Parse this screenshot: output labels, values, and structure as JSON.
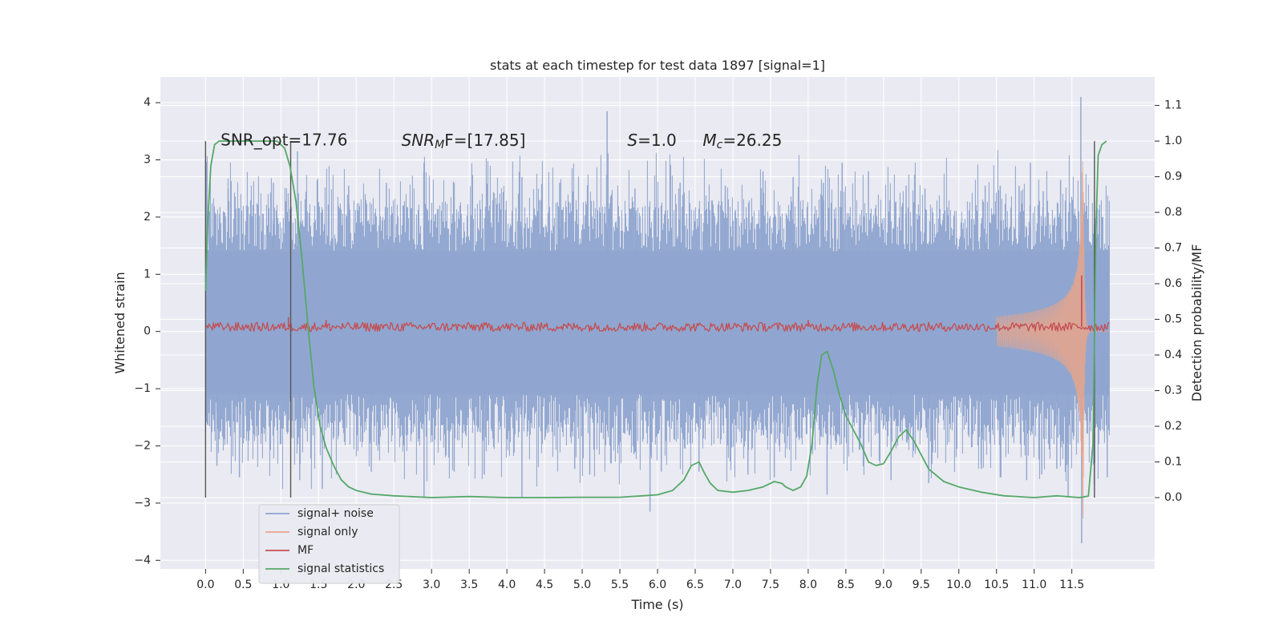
{
  "chart_data": {
    "type": "line",
    "title": "stats at each timestep for test data 1897 [signal=1]",
    "xlabel": "Time (s)",
    "ylabel_left": "Whitened strain",
    "ylabel_right": "Detection probability/MF",
    "xlim": [
      -0.6,
      12.6
    ],
    "ylim_left": [
      -4.15,
      4.45
    ],
    "ylim_right": [
      -0.2,
      1.18
    ],
    "x_ticks": [
      0.0,
      0.5,
      1.0,
      1.5,
      2.0,
      2.5,
      3.0,
      3.5,
      4.0,
      4.5,
      5.0,
      5.5,
      6.0,
      6.5,
      7.0,
      7.5,
      8.0,
      8.5,
      9.0,
      9.5,
      10.0,
      10.5,
      11.0,
      11.5
    ],
    "x_tick_labels": [
      "0.0",
      "0.5",
      "1.0",
      "1.5",
      "2.0",
      "2.5",
      "3.0",
      "3.5",
      "4.0",
      "4.5",
      "5.0",
      "5.5",
      "6.0",
      "6.5",
      "7.0",
      "7.5",
      "8.0",
      "8.5",
      "9.0",
      "9.5",
      "10.0",
      "10.5",
      "11.0",
      "11.5"
    ],
    "y_left_ticks": [
      -4,
      -3,
      -2,
      -1,
      0,
      1,
      2,
      3,
      4
    ],
    "y_left_tick_labels": [
      "−4",
      "−3",
      "−2",
      "−1",
      "0",
      "1",
      "2",
      "3",
      "4"
    ],
    "y_right_ticks": [
      0.0,
      0.1,
      0.2,
      0.3,
      0.4,
      0.5,
      0.6,
      0.7,
      0.8,
      0.9,
      1.0,
      1.1
    ],
    "y_right_tick_labels": [
      "0.0",
      "0.1",
      "0.2",
      "0.3",
      "0.4",
      "0.5",
      "0.6",
      "0.7",
      "0.8",
      "0.9",
      "1.0",
      "1.1"
    ],
    "grid": true,
    "legend_position": "lower-left",
    "colors": {
      "background": "#eaeaf2",
      "grid": "#ffffff",
      "noise": "#8fa5cf",
      "signal": "#e8a48b",
      "mf": "#c44e52",
      "stats": "#55a868",
      "vline": "#555555"
    },
    "annotations": [
      {
        "text": "SNR_opt=17.76",
        "x": 0.2,
        "y_right": 1.0
      },
      {
        "text": "SNR_MF=[17.85]",
        "x": 2.6,
        "y_right": 1.0,
        "italic_base": "SNR",
        "sub": "M",
        "tail": "F=[17.85]"
      },
      {
        "text": "S=1.0",
        "x": 5.6,
        "y_right": 1.0,
        "italic_base": "S",
        "tail": "=1.0"
      },
      {
        "text": "M_c=26.25",
        "x": 6.6,
        "y_right": 1.0,
        "italic_base": "M",
        "sub": "c",
        "tail": "=26.25"
      }
    ],
    "vlines": [
      {
        "x": 0.0,
        "y_right": [
          0.0,
          1.0
        ]
      },
      {
        "x": 1.13,
        "y_right": [
          0.0,
          1.0
        ]
      },
      {
        "x": 11.8,
        "y_right": [
          0.0,
          1.0
        ]
      }
    ],
    "series": [
      {
        "name": "signal+ noise",
        "axis": "left",
        "t_start": 0.0,
        "t_end": 12.0,
        "core_min": -1.1,
        "core_max": 1.4,
        "spikes": [
          [
            0.12,
            2.05
          ],
          [
            0.3,
            2.5
          ],
          [
            0.9,
            2.6
          ],
          [
            1.22,
            3.15
          ],
          [
            1.9,
            2.55
          ],
          [
            2.4,
            2.6
          ],
          [
            2.9,
            2.95
          ],
          [
            3.3,
            2.6
          ],
          [
            4.2,
            2.7
          ],
          [
            4.45,
            2.3
          ],
          [
            4.7,
            2.6
          ],
          [
            5.33,
            3.85
          ],
          [
            5.7,
            2.5
          ],
          [
            6.3,
            2.6
          ],
          [
            6.9,
            2.55
          ],
          [
            7.4,
            2.8
          ],
          [
            7.8,
            2.7
          ],
          [
            8.2,
            2.6
          ],
          [
            8.45,
            2.95
          ],
          [
            8.8,
            2.8
          ],
          [
            9.3,
            2.55
          ],
          [
            9.55,
            2.5
          ],
          [
            10.35,
            2.55
          ],
          [
            10.55,
            2.55
          ],
          [
            10.8,
            2.55
          ],
          [
            10.95,
            2.95
          ],
          [
            11.12,
            2.45
          ],
          [
            11.35,
            2.65
          ],
          [
            11.62,
            4.1
          ],
          [
            0.15,
            -2.35
          ],
          [
            0.45,
            -2.55
          ],
          [
            1.25,
            -2.6
          ],
          [
            1.55,
            -2.75
          ],
          [
            2.2,
            -2.45
          ],
          [
            2.9,
            -2.9
          ],
          [
            3.3,
            -2.45
          ],
          [
            3.7,
            -2.5
          ],
          [
            4.2,
            -2.9
          ],
          [
            4.9,
            -2.4
          ],
          [
            5.1,
            -2.5
          ],
          [
            5.9,
            -3.15
          ],
          [
            6.05,
            -2.45
          ],
          [
            6.55,
            -2.45
          ],
          [
            7.2,
            -2.5
          ],
          [
            7.55,
            -2.55
          ],
          [
            8.25,
            -2.85
          ],
          [
            9.1,
            -2.6
          ],
          [
            9.6,
            -2.65
          ],
          [
            10.3,
            -2.4
          ],
          [
            10.55,
            -2.55
          ],
          [
            10.9,
            -2.6
          ],
          [
            11.1,
            -2.5
          ],
          [
            11.3,
            -2.4
          ],
          [
            11.45,
            -2.9
          ],
          [
            11.63,
            -3.7
          ],
          [
            11.97,
            -2.55
          ]
        ]
      },
      {
        "name": "signal only",
        "axis": "left",
        "chirp": true,
        "t_start": 10.5,
        "t_merger": 11.65,
        "t_end": 12.0,
        "peak_amplitude": 3.3,
        "ringdown": 0.25
      },
      {
        "name": "MF",
        "axis": "left",
        "t_start": 0.0,
        "t_end": 12.0,
        "baseline": 0.08,
        "jitter": 0.08,
        "spikes": [
          [
            1.1,
            0.25
          ],
          [
            1.6,
            0.2
          ],
          [
            8.0,
            0.2
          ],
          [
            11.63,
            0.98
          ]
        ]
      },
      {
        "name": "signal statistics",
        "axis": "right",
        "x": [
          0.0,
          0.03,
          0.07,
          0.12,
          0.18,
          0.25,
          0.4,
          0.6,
          0.8,
          0.95,
          1.05,
          1.12,
          1.2,
          1.28,
          1.36,
          1.44,
          1.52,
          1.6,
          1.7,
          1.8,
          1.9,
          2.0,
          2.2,
          2.5,
          3.0,
          3.5,
          4.0,
          4.5,
          5.0,
          5.5,
          5.8,
          6.0,
          6.2,
          6.35,
          6.45,
          6.55,
          6.62,
          6.7,
          6.8,
          7.0,
          7.2,
          7.4,
          7.55,
          7.65,
          7.7,
          7.8,
          7.9,
          7.98,
          8.05,
          8.12,
          8.18,
          8.25,
          8.33,
          8.4,
          8.5,
          8.6,
          8.7,
          8.8,
          8.9,
          9.0,
          9.1,
          9.2,
          9.3,
          9.4,
          9.5,
          9.6,
          9.8,
          10.0,
          10.3,
          10.6,
          11.0,
          11.3,
          11.6,
          11.72,
          11.78,
          11.82,
          11.85,
          11.9,
          11.96
        ],
        "values": [
          0.58,
          0.78,
          0.93,
          0.99,
          1.0,
          1.0,
          1.0,
          1.0,
          1.0,
          1.0,
          0.98,
          0.93,
          0.83,
          0.67,
          0.48,
          0.31,
          0.2,
          0.14,
          0.09,
          0.05,
          0.03,
          0.02,
          0.01,
          0.005,
          0.0,
          0.003,
          0.0,
          0.0,
          0.001,
          0.001,
          0.005,
          0.008,
          0.02,
          0.05,
          0.09,
          0.1,
          0.07,
          0.04,
          0.02,
          0.015,
          0.02,
          0.03,
          0.045,
          0.04,
          0.03,
          0.02,
          0.03,
          0.06,
          0.15,
          0.32,
          0.4,
          0.41,
          0.36,
          0.3,
          0.23,
          0.19,
          0.15,
          0.1,
          0.09,
          0.095,
          0.13,
          0.17,
          0.19,
          0.16,
          0.12,
          0.08,
          0.045,
          0.03,
          0.015,
          0.005,
          0.0,
          0.005,
          0.0,
          0.004,
          0.15,
          0.75,
          0.96,
          0.99,
          1.0
        ]
      }
    ]
  }
}
